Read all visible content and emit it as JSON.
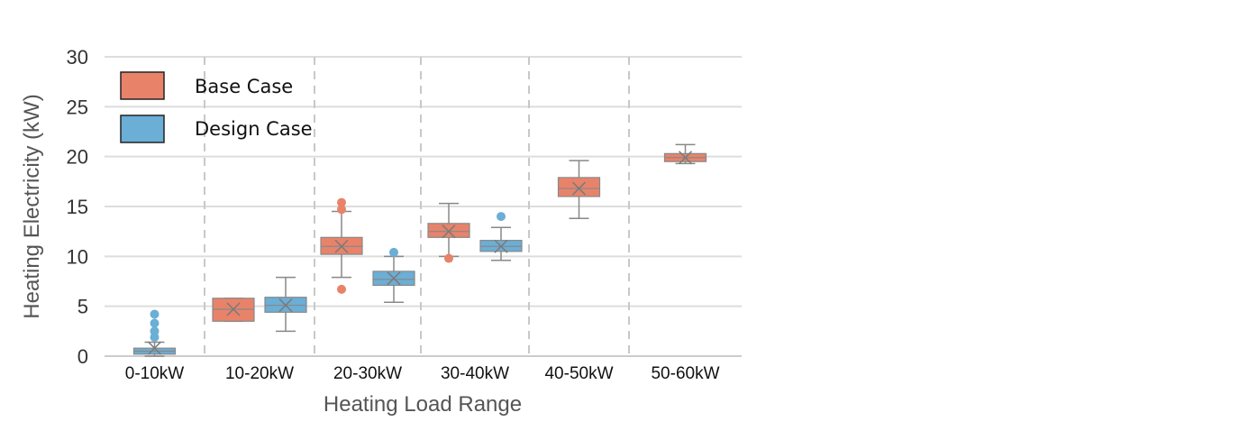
{
  "chart_data": {
    "type": "box",
    "xlabel": "Heating Load Range",
    "ylabel": "Heating Electricity (kW)",
    "ylim": [
      0,
      30
    ],
    "yticks": [
      0,
      5,
      10,
      15,
      20,
      25,
      30
    ],
    "categories": [
      "0-10kW",
      "10-20kW",
      "20-30kW",
      "30-40kW",
      "40-50kW",
      "50-60kW"
    ],
    "legend_position": "top-left",
    "grid": true,
    "series": [
      {
        "name": "Base Case",
        "color": "#E8836A",
        "boxes": [
          null,
          {
            "whisker_low": 3.5,
            "q1": 3.5,
            "median": 4.7,
            "q3": 5.8,
            "whisker_high": 5.8,
            "mean": 4.7,
            "outliers": []
          },
          {
            "whisker_low": 7.9,
            "q1": 10.2,
            "median": 11.0,
            "q3": 11.9,
            "whisker_high": 14.5,
            "mean": 11.0,
            "outliers": [
              6.7,
              14.7,
              15.4
            ]
          },
          {
            "whisker_low": 10.0,
            "q1": 11.9,
            "median": 12.5,
            "q3": 13.3,
            "whisker_high": 15.3,
            "mean": 12.5,
            "outliers": [
              9.8
            ]
          },
          {
            "whisker_low": 13.8,
            "q1": 16.0,
            "median": 16.8,
            "q3": 17.9,
            "whisker_high": 19.6,
            "mean": 16.8,
            "outliers": []
          },
          {
            "whisker_low": 19.3,
            "q1": 19.5,
            "median": 19.9,
            "q3": 20.3,
            "whisker_high": 21.2,
            "mean": 19.9,
            "outliers": []
          }
        ]
      },
      {
        "name": "Design Case",
        "color": "#6BAED6",
        "boxes": [
          {
            "whisker_low": 0.0,
            "q1": 0.2,
            "median": 0.5,
            "q3": 0.8,
            "whisker_high": 1.4,
            "mean": 0.8,
            "outliers": [
              1.9,
              2.5,
              3.3,
              4.2
            ]
          },
          {
            "whisker_low": 2.5,
            "q1": 4.4,
            "median": 5.1,
            "q3": 5.9,
            "whisker_high": 7.9,
            "mean": 5.1,
            "outliers": []
          },
          {
            "whisker_low": 5.4,
            "q1": 7.1,
            "median": 7.7,
            "q3": 8.5,
            "whisker_high": 10.0,
            "mean": 7.8,
            "outliers": [
              10.4
            ]
          },
          {
            "whisker_low": 9.6,
            "q1": 10.5,
            "median": 11.0,
            "q3": 11.6,
            "whisker_high": 12.9,
            "mean": 11.0,
            "outliers": [
              14.0
            ]
          },
          null,
          null
        ]
      }
    ]
  }
}
